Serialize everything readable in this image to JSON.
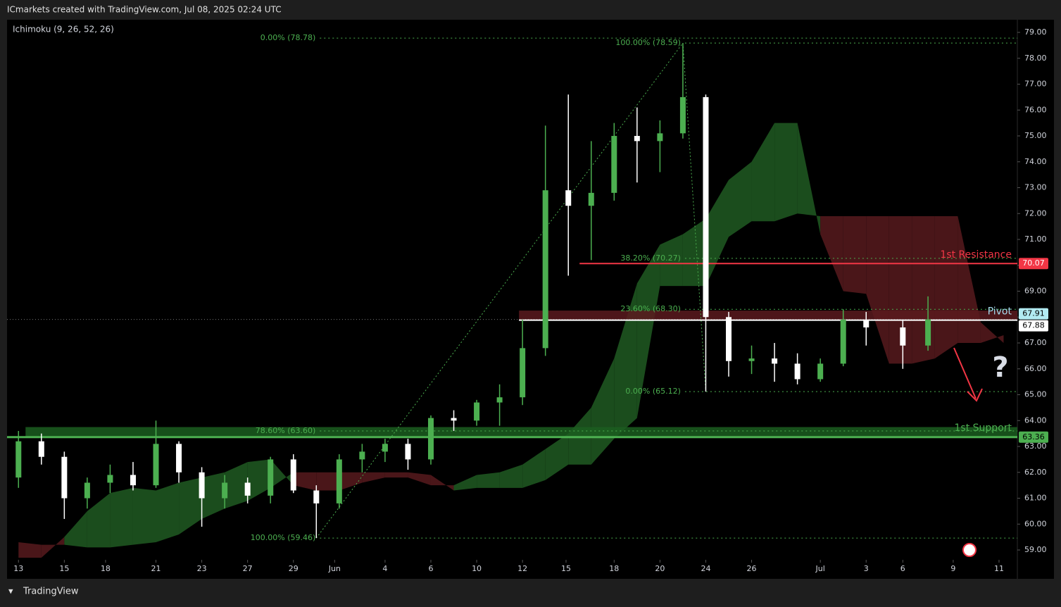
{
  "header": {
    "title": "ICmarkets created with TradingView.com, Jul 08, 2025 02:24 UTC",
    "indicator": "Ichimoku (9, 26, 52, 26)"
  },
  "footer": {
    "brand": "TradingView"
  },
  "chart_data": {
    "type": "candlestick",
    "x": [
      0,
      1,
      2,
      3,
      4,
      5,
      6,
      7,
      8,
      9,
      10,
      11,
      12,
      13,
      14,
      15,
      16,
      17,
      18,
      19,
      20,
      21,
      22,
      23,
      24,
      25,
      26,
      27,
      28,
      29,
      30,
      31,
      32,
      33,
      34,
      35,
      36,
      37,
      38.6,
      39.7
    ],
    "open": [
      61.8,
      63.2,
      62.6,
      61.0,
      61.6,
      61.9,
      61.5,
      63.1,
      62.0,
      61.0,
      61.6,
      61.1,
      62.5,
      61.3,
      60.8,
      62.5,
      62.8,
      63.1,
      62.5,
      64.1,
      64.0,
      64.7,
      64.9,
      66.8,
      72.9,
      72.3,
      72.8,
      75.0,
      74.8,
      75.1,
      76.5,
      68.0,
      66.3,
      66.4,
      66.2,
      65.6,
      66.2,
      67.9,
      67.6,
      66.9
    ],
    "high": [
      63.6,
      63.5,
      62.8,
      61.8,
      62.3,
      62.4,
      64.0,
      63.2,
      62.2,
      61.9,
      61.8,
      62.6,
      62.7,
      61.5,
      62.7,
      63.1,
      63.3,
      63.3,
      64.2,
      64.4,
      64.8,
      65.4,
      67.9,
      75.4,
      76.6,
      74.8,
      75.5,
      76.1,
      75.6,
      78.59,
      76.6,
      68.2,
      66.9,
      67.0,
      66.6,
      66.4,
      68.3,
      68.2,
      67.9,
      68.8
    ],
    "low": [
      61.4,
      62.3,
      60.2,
      60.6,
      61.2,
      61.3,
      61.4,
      61.6,
      59.9,
      60.6,
      60.8,
      60.8,
      61.2,
      59.46,
      60.6,
      62.0,
      62.4,
      62.1,
      62.3,
      63.6,
      63.8,
      63.8,
      64.6,
      66.5,
      69.6,
      70.2,
      72.5,
      73.2,
      73.6,
      74.9,
      65.12,
      65.7,
      65.8,
      65.5,
      65.4,
      65.5,
      66.1,
      66.9,
      66.0,
      66.7
    ],
    "close": [
      63.2,
      62.6,
      61.0,
      61.6,
      61.9,
      61.5,
      63.1,
      62.0,
      61.0,
      61.6,
      61.1,
      62.5,
      61.3,
      60.8,
      62.5,
      62.8,
      63.1,
      62.5,
      64.1,
      64.0,
      64.7,
      64.9,
      66.8,
      72.9,
      72.3,
      72.8,
      75.0,
      74.8,
      75.1,
      76.5,
      68.0,
      66.3,
      66.4,
      66.2,
      65.6,
      66.2,
      67.9,
      67.6,
      66.9,
      67.91
    ],
    "up_color": "#4caf50",
    "down_color": "#ffffff",
    "ichimoku": {
      "x": [
        0,
        1,
        2,
        3,
        4,
        5,
        6,
        7,
        8,
        9,
        10,
        11,
        12,
        13,
        14,
        15,
        16,
        17,
        18,
        19,
        20,
        21,
        22,
        23,
        24,
        25,
        26,
        27,
        28,
        29,
        30,
        31,
        32,
        33,
        34,
        35,
        36,
        37,
        38,
        39,
        40,
        41,
        42,
        43
      ],
      "span_a": [
        58.7,
        58.7,
        59.5,
        60.5,
        61.2,
        61.4,
        61.3,
        61.6,
        61.8,
        62.0,
        62.4,
        62.5,
        61.5,
        61.3,
        61.3,
        61.6,
        61.8,
        61.8,
        61.5,
        61.5,
        61.9,
        62.0,
        62.3,
        62.9,
        63.5,
        64.5,
        66.4,
        69.3,
        70.8,
        71.2,
        71.8,
        73.3,
        74.0,
        75.5,
        75.5,
        71.2,
        69.0,
        68.9,
        66.2,
        66.2,
        66.4,
        67.0,
        67.0,
        67.3
      ],
      "span_b": [
        59.3,
        59.2,
        59.2,
        59.1,
        59.1,
        59.2,
        59.3,
        59.6,
        60.2,
        60.6,
        60.9,
        61.4,
        62.0,
        62.0,
        62.0,
        62.0,
        62.0,
        62.0,
        61.9,
        61.3,
        61.4,
        61.4,
        61.4,
        61.7,
        62.3,
        62.3,
        63.3,
        64.1,
        69.2,
        69.2,
        69.2,
        71.1,
        71.7,
        71.7,
        72.0,
        71.9,
        71.9,
        71.9,
        71.9,
        71.9,
        71.9,
        71.9,
        67.8,
        67.0
      ],
      "bull_color": "#1b4d1d",
      "bear_color": "#4a1619"
    },
    "xlim": [
      -0.5,
      43.6
    ],
    "xticks": [
      {
        "value": 0,
        "label": "13"
      },
      {
        "value": 2,
        "label": "15"
      },
      {
        "value": 3.8,
        "label": "18"
      },
      {
        "value": 6,
        "label": "21"
      },
      {
        "value": 8,
        "label": "23"
      },
      {
        "value": 10,
        "label": "27"
      },
      {
        "value": 12,
        "label": "29"
      },
      {
        "value": 13.8,
        "label": "Jun"
      },
      {
        "value": 16,
        "label": "4"
      },
      {
        "value": 18,
        "label": "6"
      },
      {
        "value": 20,
        "label": "10"
      },
      {
        "value": 22,
        "label": "12"
      },
      {
        "value": 23.9,
        "label": "15"
      },
      {
        "value": 26,
        "label": "18"
      },
      {
        "value": 28,
        "label": "20"
      },
      {
        "value": 30,
        "label": "24"
      },
      {
        "value": 32,
        "label": "26"
      },
      {
        "value": 35,
        "label": "Jul"
      },
      {
        "value": 37,
        "label": "3"
      },
      {
        "value": 38.6,
        "label": "6"
      },
      {
        "value": 40.8,
        "label": "9"
      },
      {
        "value": 42.8,
        "label": "11"
      }
    ],
    "ylim": [
      58.62,
      79.49
    ],
    "yticks": [
      {
        "value": 59,
        "label": "59.00"
      },
      {
        "value": 60,
        "label": "60.00"
      },
      {
        "value": 61,
        "label": "61.00"
      },
      {
        "value": 62,
        "label": "62.00"
      },
      {
        "value": 63,
        "label": "63.00"
      },
      {
        "value": 64,
        "label": "64.00"
      },
      {
        "value": 65,
        "label": "65.00"
      },
      {
        "value": 66,
        "label": "66.00"
      },
      {
        "value": 67,
        "label": "67.00"
      },
      {
        "value": 68,
        "label": "68.00"
      },
      {
        "value": 69,
        "label": "69.00"
      },
      {
        "value": 70,
        "label": "70.00"
      },
      {
        "value": 71,
        "label": "71.00"
      },
      {
        "value": 72,
        "label": "72.00"
      },
      {
        "value": 73,
        "label": "73.00"
      },
      {
        "value": 74,
        "label": "74.00"
      },
      {
        "value": 75,
        "label": "75.00"
      },
      {
        "value": 76,
        "label": "76.00"
      },
      {
        "value": 77,
        "label": "77.00"
      },
      {
        "value": 78,
        "label": "78.00"
      },
      {
        "value": 79,
        "label": "79.00"
      }
    ],
    "fib_color": "#4caf50",
    "fib_levels": [
      [
        {
          "label": "0.00% (78.78)",
          "value": 78.78
        },
        {
          "label": "78.60% (63.60)",
          "value": 63.6
        },
        {
          "label": "100.00% (59.46)",
          "value": 59.46
        }
      ],
      [
        {
          "label": "100.00% (78.59)",
          "value": 78.59
        },
        {
          "label": "38.20% (70.27)",
          "value": 70.27
        },
        {
          "label": "23.60% (68.30)",
          "value": 68.3
        },
        {
          "label": "0.00% (65.12)",
          "value": 65.12
        }
      ]
    ],
    "levels": [
      {
        "name": "1st Resistance",
        "value": 70.07,
        "color": "#f23645",
        "text_color": "#f23645",
        "tag_text": "#ffffff"
      },
      {
        "name": "Pivot",
        "value": 67.88,
        "zone_top": 68.25,
        "color": "#ffffff",
        "zone_color": "#5a1a1e",
        "text_color": "#a8dcef",
        "tag_text": "#000000"
      },
      {
        "name": "1st Support",
        "value": 63.36,
        "zone_top": 63.75,
        "color": "#4caf50",
        "zone_color": "#1b5e20",
        "text_color": "#4caf50",
        "tag_text": "#000000"
      }
    ],
    "last_price_color": "#b2ebf2",
    "annotation": "?"
  }
}
